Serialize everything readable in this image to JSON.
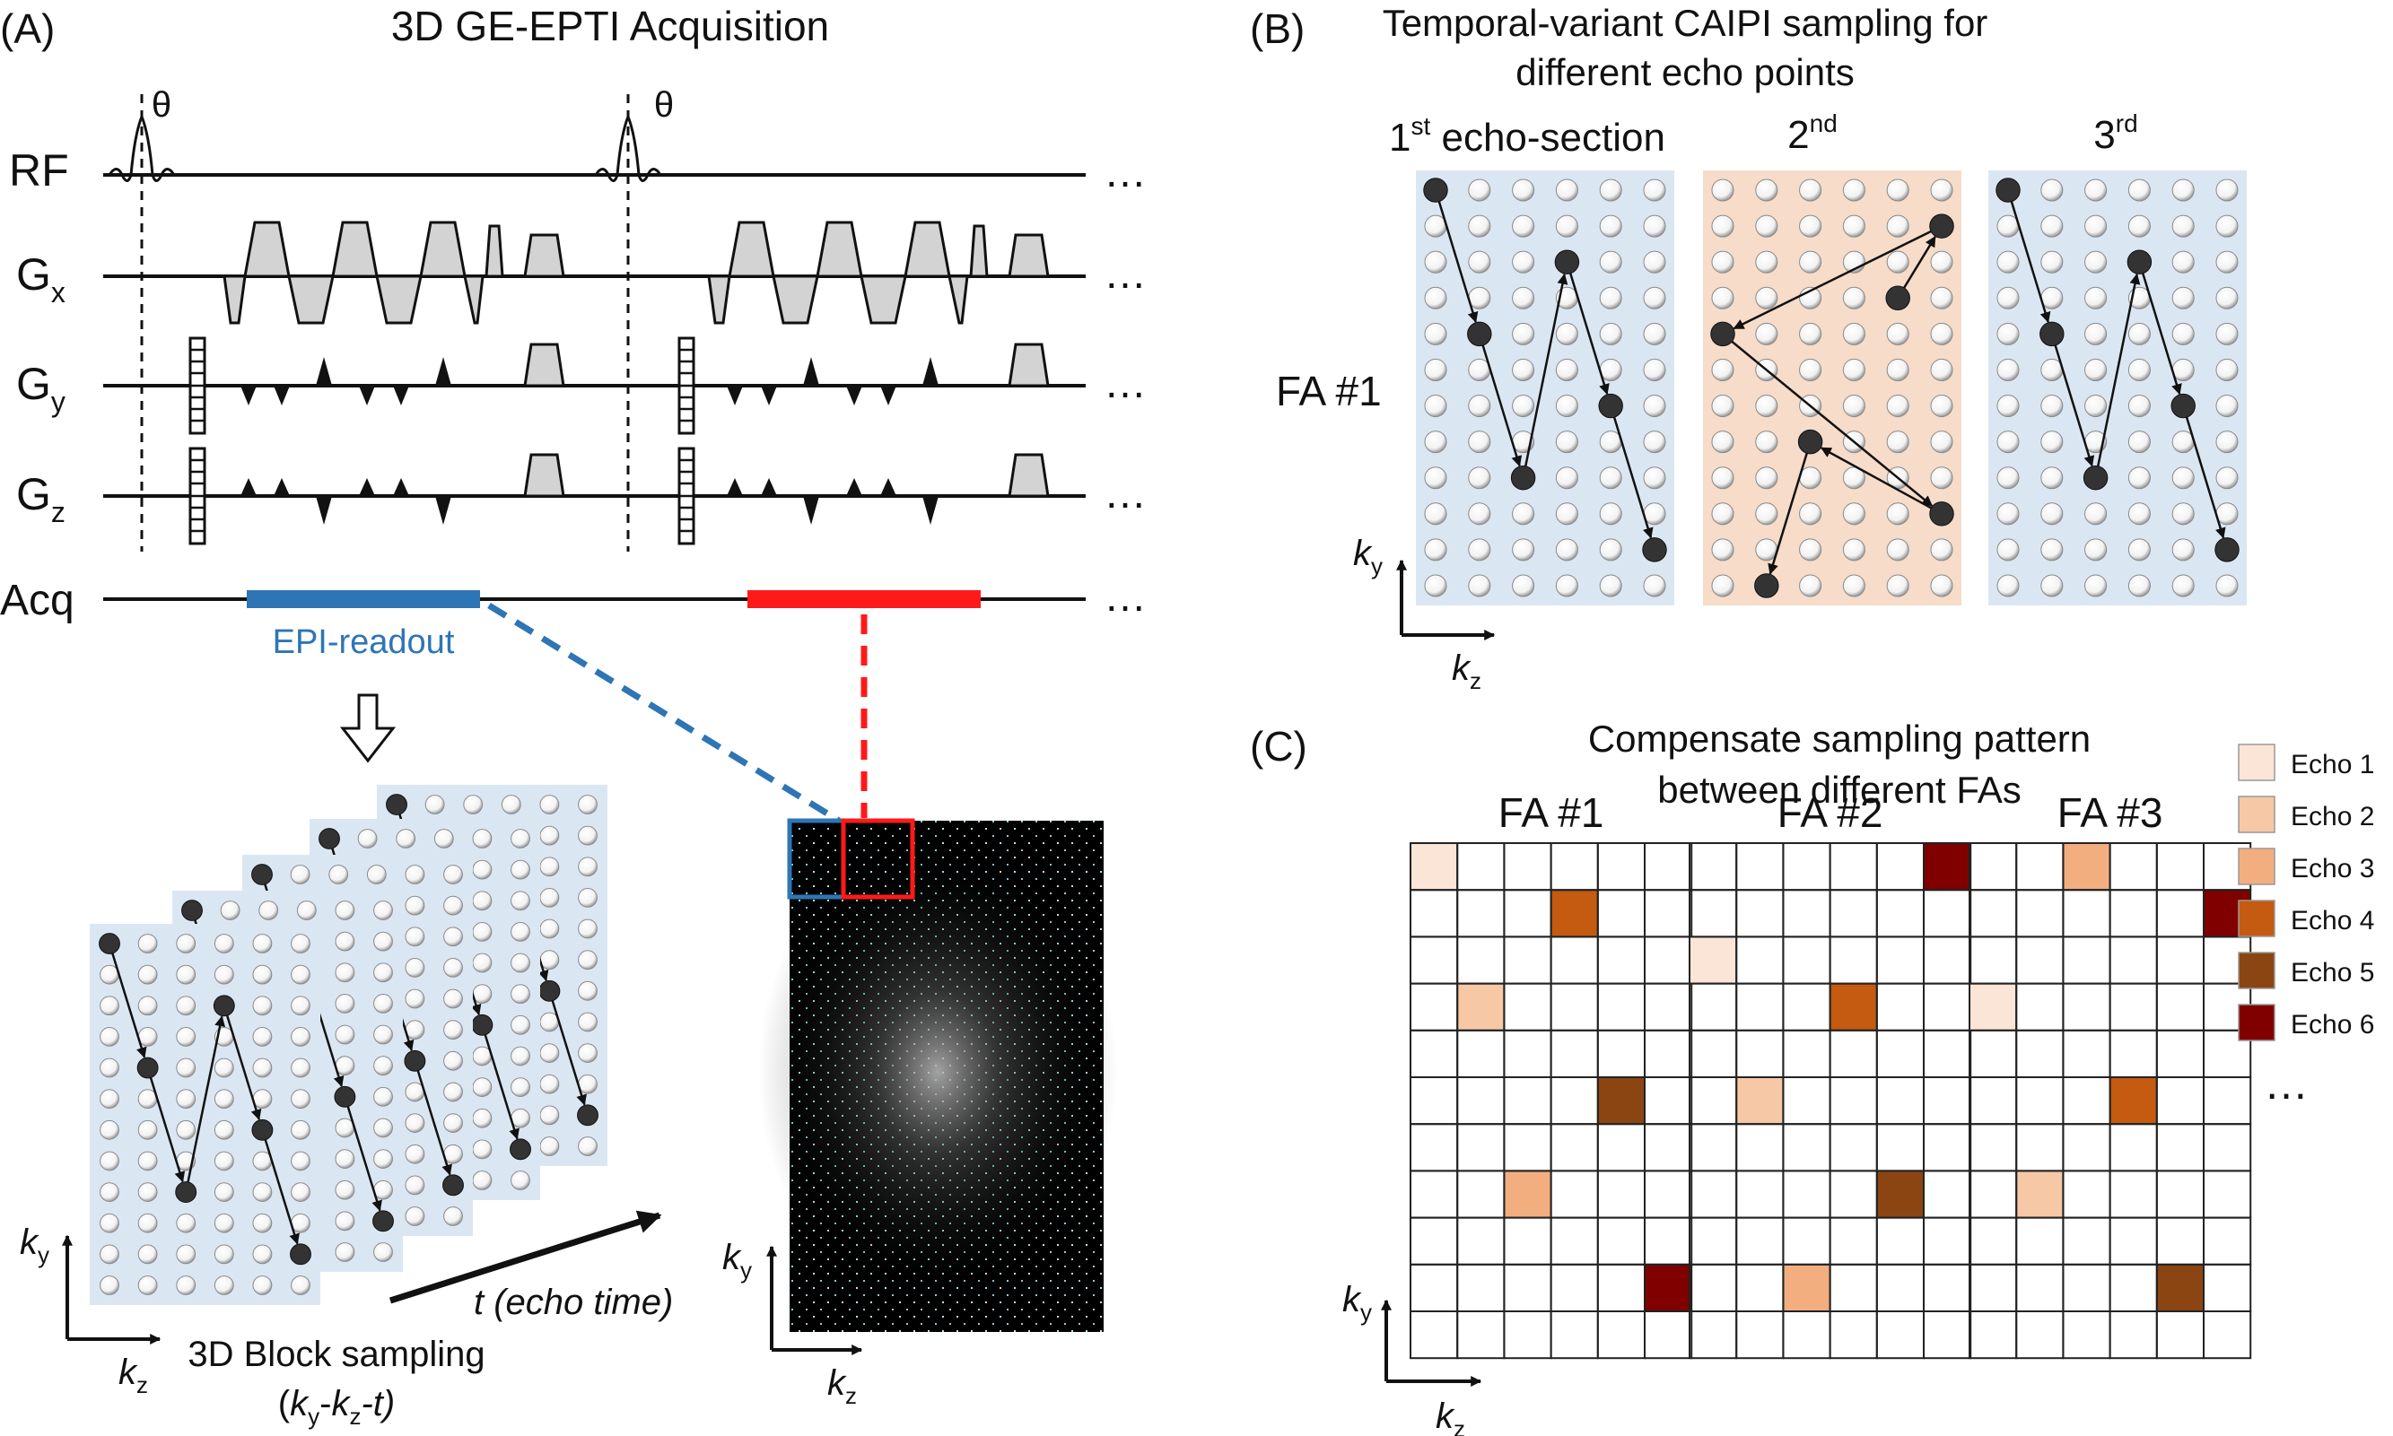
{
  "colors": {
    "block_blue": "#dae7f3",
    "block_peach": "#f6dcc9",
    "epi_readout": "#2e75b6",
    "red_readout": "#ff1a1a",
    "gradient_fill": "#d3d3d3",
    "echo1": "#fbe5d6",
    "echo2": "#f6c8a6",
    "echo3": "#f2ae7f",
    "echo4": "#c55a11",
    "echo5": "#8b4513",
    "echo6": "#800000"
  },
  "panelA": {
    "label": "(A)",
    "title": "3D GE-EPTI Acquisition",
    "theta": "θ",
    "rows": {
      "rf": "RF",
      "gx": {
        "base": "G",
        "sub": "x"
      },
      "gy": {
        "base": "G",
        "sub": "y"
      },
      "gz": {
        "base": "G",
        "sub": "z"
      },
      "acq": "Acq"
    },
    "ellipsis": "…",
    "epi_readout_label": "EPI-readout",
    "block_label_line1": "3D Block sampling",
    "block_label_line2": {
      "open": "(",
      "ky_k": "k",
      "ky_sub": "y",
      "dash1": "-",
      "kz_k": "k",
      "kz_sub": "z",
      "tail": "-t)"
    },
    "echo_time_t": "t",
    "echo_time_rest": " (echo time)",
    "axis_ky": {
      "k": "k",
      "sub": "y"
    },
    "axis_kz": {
      "k": "k",
      "sub": "z"
    }
  },
  "panelB": {
    "label": "(B)",
    "title_line1": "Temporal-variant CAIPI sampling for",
    "title_line2": "different echo points",
    "section1": {
      "num": "1",
      "sup": "st",
      "rest": " echo-section"
    },
    "section2": {
      "num": "2",
      "sup": "nd"
    },
    "section3": {
      "num": "3",
      "sup": "rd"
    },
    "fa_label": "FA #1",
    "axis_ky": {
      "k": "k",
      "sub": "y"
    },
    "axis_kz": {
      "k": "k",
      "sub": "z"
    }
  },
  "panelC": {
    "label": "(C)",
    "title_line1": "Compensate sampling pattern",
    "title_line2": "between different FAs",
    "grids": [
      {
        "label": "FA #1",
        "cells": [
          [
            0,
            0,
            1
          ],
          [
            1,
            3,
            4
          ],
          [
            3,
            1,
            2
          ],
          [
            5,
            4,
            5
          ],
          [
            7,
            2,
            3
          ],
          [
            9,
            5,
            6
          ]
        ]
      },
      {
        "label": "FA #2",
        "cells": [
          [
            0,
            5,
            6
          ],
          [
            2,
            0,
            1
          ],
          [
            3,
            3,
            4
          ],
          [
            5,
            1,
            2
          ],
          [
            7,
            4,
            5
          ],
          [
            9,
            2,
            3
          ]
        ]
      },
      {
        "label": "FA #3",
        "cells": [
          [
            0,
            2,
            3
          ],
          [
            1,
            5,
            6
          ],
          [
            3,
            0,
            1
          ],
          [
            5,
            3,
            4
          ],
          [
            7,
            1,
            2
          ],
          [
            9,
            4,
            5
          ]
        ]
      }
    ],
    "legend": [
      "Echo 1",
      "Echo 2",
      "Echo 3",
      "Echo 4",
      "Echo 5",
      "Echo 6"
    ],
    "legend_more": "…",
    "axis_ky": {
      "k": "k",
      "sub": "y"
    },
    "axis_kz": {
      "k": "k",
      "sub": "z"
    }
  }
}
